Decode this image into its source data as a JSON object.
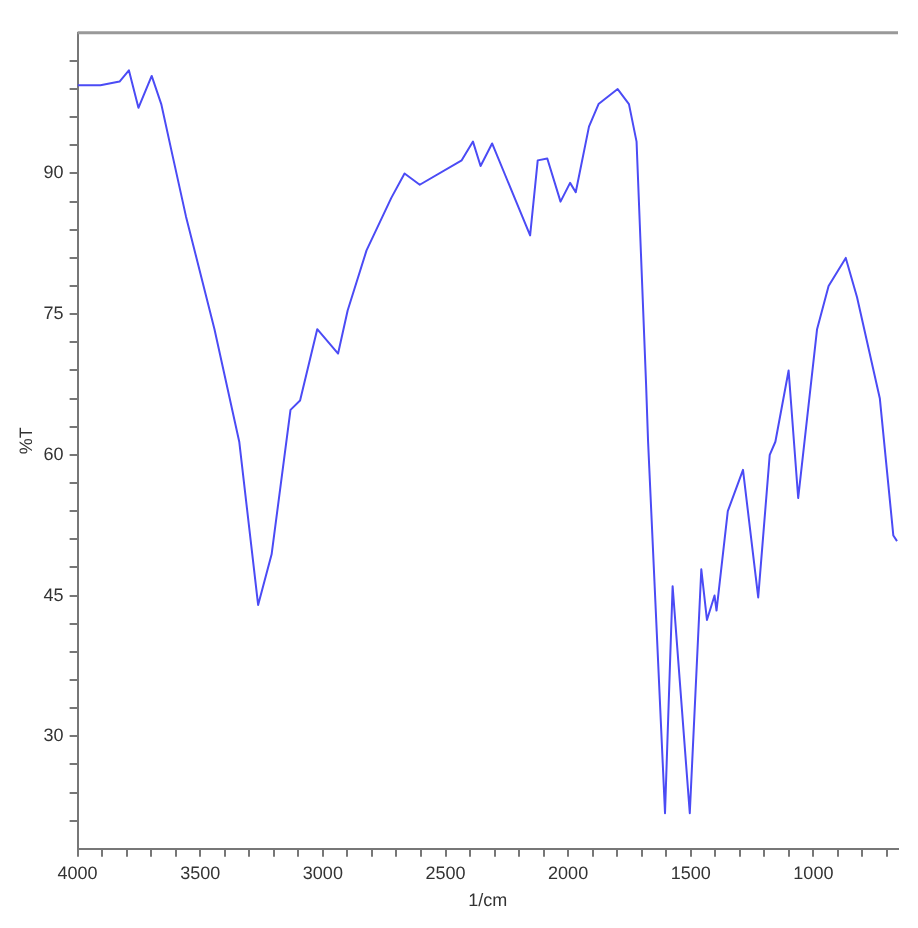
{
  "chart_data": {
    "type": "line",
    "xlabel": "1/cm",
    "ylabel": "%T",
    "marker": "none",
    "line_style": "solid",
    "legend": false,
    "grid": false,
    "xlim": [
      4000,
      655
    ],
    "ylim": [
      18,
      105
    ],
    "xticks": [
      4000,
      {
        "value": 3900,
        "label": null
      },
      {
        "value": 3800,
        "label": null
      },
      {
        "value": 3700,
        "label": null
      },
      {
        "value": 3600,
        "label": null
      },
      3500,
      {
        "value": 3400,
        "label": null
      },
      {
        "value": 3300,
        "label": null
      },
      {
        "value": 3200,
        "label": null
      },
      {
        "value": 3100,
        "label": null
      },
      3000,
      {
        "value": 2900,
        "label": null
      },
      {
        "value": 2800,
        "label": null
      },
      {
        "value": 2700,
        "label": null
      },
      {
        "value": 2600,
        "label": null
      },
      2500,
      {
        "value": 2400,
        "label": null
      },
      {
        "value": 2300,
        "label": null
      },
      {
        "value": 2200,
        "label": null
      },
      {
        "value": 2100,
        "label": null
      },
      2000,
      {
        "value": 1900,
        "label": null
      },
      {
        "value": 1800,
        "label": null
      },
      {
        "value": 1700,
        "label": null
      },
      {
        "value": 1600,
        "label": null
      },
      1500,
      {
        "value": 1400,
        "label": null
      },
      {
        "value": 1300,
        "label": null
      },
      {
        "value": 1200,
        "label": null
      },
      {
        "value": 1100,
        "label": null
      },
      1000,
      {
        "value": 900,
        "label": null
      },
      {
        "value": 800,
        "label": null
      },
      {
        "value": 700,
        "label": null
      }
    ],
    "yticks": [
      {
        "value": 21,
        "label": null
      },
      {
        "value": 24,
        "label": null
      },
      {
        "value": 27,
        "label": null
      },
      30,
      {
        "value": 33,
        "label": null
      },
      {
        "value": 36,
        "label": null
      },
      {
        "value": 39,
        "label": null
      },
      {
        "value": 42,
        "label": null
      },
      45,
      {
        "value": 48,
        "label": null
      },
      {
        "value": 51,
        "label": null
      },
      {
        "value": 54,
        "label": null
      },
      {
        "value": 57,
        "label": null
      },
      60,
      {
        "value": 63,
        "label": null
      },
      {
        "value": 66,
        "label": null
      },
      {
        "value": 69,
        "label": null
      },
      {
        "value": 72,
        "label": null
      },
      75,
      {
        "value": 78,
        "label": null
      },
      {
        "value": 81,
        "label": null
      },
      {
        "value": 84,
        "label": null
      },
      {
        "value": 87,
        "label": null
      },
      90,
      {
        "value": 93,
        "label": null
      },
      {
        "value": 96,
        "label": null
      },
      {
        "value": 99,
        "label": null
      },
      {
        "value": 102,
        "label": null
      }
    ],
    "series": [
      {
        "color": "#4b4bf5",
        "x": [
          4000,
          3907,
          3829,
          3791,
          3752,
          3698,
          3659,
          3612,
          3558,
          3442,
          3341,
          3264,
          3209,
          3132,
          3093,
          3023,
          2938,
          2899,
          2822,
          2721,
          2667,
          2605,
          2434,
          2388,
          2357,
          2310,
          2155,
          2124,
          2085,
          2031,
          1992,
          1969,
          1915,
          1876,
          1798,
          1752,
          1721,
          1682,
          1674,
          1605,
          1574,
          1504,
          1457,
          1434,
          1403,
          1395,
          1349,
          1287,
          1225,
          1178,
          1155,
          1101,
          1062,
          985,
          938,
          868,
          822,
          729,
          674,
          659
        ],
        "values": [
          99.4,
          99.4,
          99.8,
          101,
          97,
          100.4,
          97.4,
          91.8,
          85.4,
          73.4,
          61.4,
          44,
          49.4,
          64.8,
          65.8,
          73.4,
          70.8,
          75.4,
          81.8,
          87.4,
          90,
          88.8,
          91.4,
          93.4,
          90.8,
          93.2,
          83.4,
          91.4,
          91.6,
          87,
          89,
          88,
          95,
          97.4,
          99,
          97.4,
          93.4,
          67.4,
          61.4,
          21.8,
          46,
          21.8,
          47.8,
          42.4,
          45,
          43.4,
          54,
          58.4,
          44.8,
          60,
          61.4,
          69,
          55.4,
          73.4,
          78,
          81,
          76.8,
          66,
          51.4,
          50.8
        ]
      }
    ]
  }
}
